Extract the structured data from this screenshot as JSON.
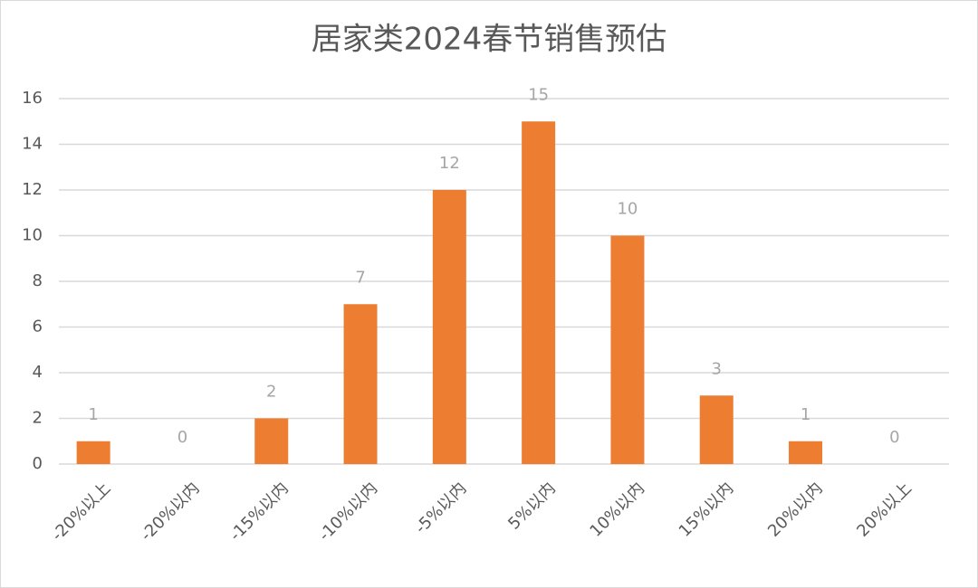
{
  "chart_data": {
    "type": "bar",
    "title": "居家类2024春节销售预估",
    "categories": [
      "-20%以上",
      "-20%以内",
      "-15%以内",
      "-10%以内",
      "-5%以内",
      "5%以内",
      "10%以内",
      "15%以内",
      "20%以内",
      "20%以上"
    ],
    "values": [
      1,
      0,
      2,
      7,
      12,
      15,
      10,
      3,
      1,
      0
    ],
    "color": "#ed7d31",
    "ylim": [
      0,
      16
    ],
    "yticks": [
      0,
      2,
      4,
      6,
      8,
      10,
      12,
      14,
      16
    ],
    "grid": true
  }
}
